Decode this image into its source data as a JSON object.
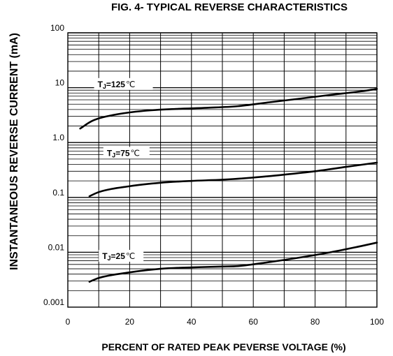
{
  "chart_data": {
    "type": "line",
    "title": "FIG. 4- TYPICAL REVERSE CHARACTERISTICS",
    "xlabel": "PERCENT OF RATED PEAK PEVERSE VOLTAGE (%)",
    "ylabel": "INSTANTANEOUS REVERSE CURRENT (mA)",
    "xlim": [
      0,
      100
    ],
    "ylim": [
      0.001,
      100
    ],
    "yscale": "log",
    "grid": true,
    "x_ticks": [
      0,
      20,
      40,
      60,
      80,
      100
    ],
    "x_tick_labels": [
      "0",
      "20",
      "40",
      "60",
      "80",
      "100"
    ],
    "y_ticks": [
      100,
      10,
      1,
      0.1,
      0.01,
      0.001
    ],
    "y_tick_labels": [
      "100",
      "10",
      "1.0",
      "0.1",
      "0.01",
      "0.001"
    ],
    "series": [
      {
        "name": "TJ=125℃",
        "label": {
          "prefix": "T",
          "sub": "J",
          "value": "=125",
          "unit": "℃"
        },
        "x": [
          4,
          8,
          15,
          25,
          35,
          45,
          55,
          65,
          75,
          85,
          95,
          100
        ],
        "y": [
          1.8,
          2.5,
          3.2,
          3.8,
          4.1,
          4.3,
          4.6,
          5.4,
          6.3,
          7.4,
          8.6,
          9.5
        ]
      },
      {
        "name": "TJ=75℃",
        "label": {
          "prefix": "T",
          "sub": "J",
          "value": "=75",
          "unit": "℃"
        },
        "x": [
          7,
          10,
          20,
          30,
          40,
          50,
          60,
          70,
          80,
          90,
          100
        ],
        "y": [
          0.105,
          0.125,
          0.16,
          0.185,
          0.2,
          0.21,
          0.23,
          0.26,
          0.3,
          0.36,
          0.43
        ]
      },
      {
        "name": "TJ=25℃",
        "label": {
          "prefix": "T",
          "sub": "J",
          "value": "=25",
          "unit": "℃"
        },
        "x": [
          7,
          10,
          20,
          30,
          40,
          50,
          55,
          65,
          75,
          85,
          95,
          100
        ],
        "y": [
          0.0029,
          0.0034,
          0.0043,
          0.005,
          0.0053,
          0.0055,
          0.0056,
          0.0066,
          0.008,
          0.01,
          0.013,
          0.015
        ]
      }
    ]
  }
}
